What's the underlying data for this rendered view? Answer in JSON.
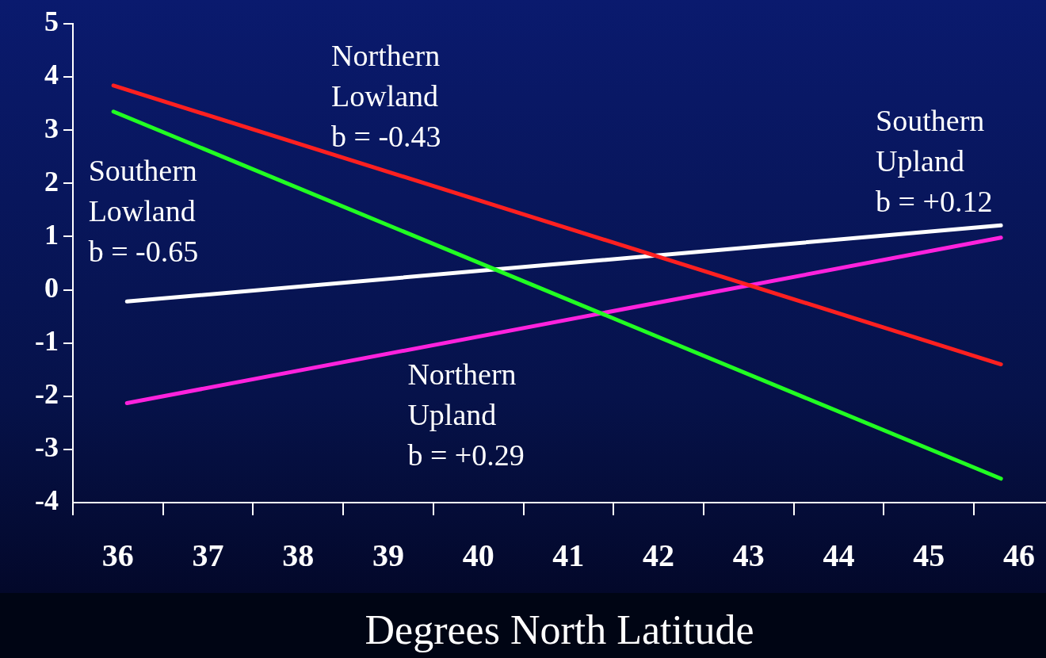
{
  "chart_data": {
    "type": "line",
    "xlabel": "Degrees North Latitude",
    "xlim": [
      35.5,
      46.3
    ],
    "xticks": [
      {
        "value": 35.5,
        "label": null
      },
      36,
      {
        "value": 36.5,
        "label": null
      },
      37,
      {
        "value": 37.5,
        "label": null
      },
      38,
      {
        "value": 38.5,
        "label": null
      },
      39,
      {
        "value": 39.5,
        "label": null
      },
      40,
      {
        "value": 40.5,
        "label": null
      },
      41,
      {
        "value": 41.5,
        "label": null
      },
      42,
      {
        "value": 42.5,
        "label": null
      },
      43,
      {
        "value": 43.5,
        "label": null
      },
      44,
      {
        "value": 44.5,
        "label": null
      },
      45,
      {
        "value": 45.5,
        "label": null
      },
      46
    ],
    "ylim": [
      -4,
      5
    ],
    "yticks": [
      -4,
      -3,
      -2,
      -1,
      0,
      1,
      2,
      3,
      4,
      5
    ],
    "grid": false,
    "legend": false,
    "marker": "none",
    "line_style": "solid",
    "series": [
      {
        "color": "#ff2020",
        "x": [
          35.95,
          45.8
        ],
        "values": [
          3.84,
          -1.4
        ]
      },
      {
        "color": "#22ff22",
        "x": [
          35.95,
          45.8
        ],
        "values": [
          3.35,
          -3.55
        ]
      },
      {
        "color": "#ffffff",
        "x": [
          36.1,
          45.8
        ],
        "values": [
          -0.22,
          1.21
        ]
      },
      {
        "color": "#ff22dd",
        "x": [
          36.1,
          45.8
        ],
        "values": [
          -2.13,
          0.98
        ]
      }
    ],
    "annotations": [
      "Northern\nLowland\nb = -0.43",
      "Southern\nLowland\nb = -0.65",
      "Southern\nUpland\nb = +0.12",
      "Northern\nUpland\nb = +0.29"
    ]
  }
}
